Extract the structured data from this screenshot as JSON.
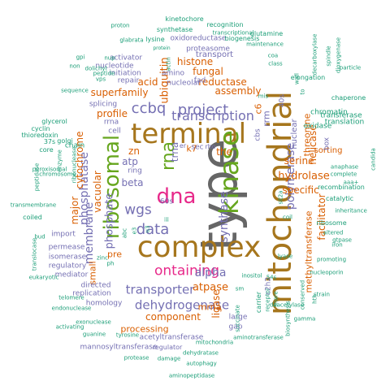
{
  "palette": {
    "green": "#1b9e77",
    "orange": "#d95f02",
    "purple": "#7570b3",
    "pink": "#e7298a",
    "lime": "#66a61e",
    "gold": "#a6761d",
    "gray": "#666666"
  },
  "words": [
    {
      "t": "type",
      "c": "gray"
    },
    {
      "t": "mitochondrial",
      "c": "gold"
    },
    {
      "t": "complex",
      "c": "gold"
    },
    {
      "t": "terminal",
      "c": "gold"
    },
    {
      "t": "kinase",
      "c": "lime"
    },
    {
      "t": "dna",
      "c": "pink"
    },
    {
      "t": "ribosomal",
      "c": "lime"
    },
    {
      "t": "rna",
      "c": "lime"
    },
    {
      "t": "transcription",
      "c": "purple"
    },
    {
      "t": "project",
      "c": "purple"
    },
    {
      "t": "ccbq",
      "c": "purple"
    },
    {
      "t": "data",
      "c": "purple"
    },
    {
      "t": "wgs",
      "c": "purple"
    },
    {
      "t": "synthase",
      "c": "purple"
    },
    {
      "t": "polymerase",
      "c": "purple"
    },
    {
      "t": "ontaining",
      "c": "pink"
    },
    {
      "t": "alpha",
      "c": "purple"
    },
    {
      "t": "transporter",
      "c": "purple"
    },
    {
      "t": "dehydrogenase",
      "c": "purple"
    },
    {
      "t": "membrane",
      "c": "purple"
    },
    {
      "t": "phosphate",
      "c": "purple"
    },
    {
      "t": "phosphatase",
      "c": "purple"
    },
    {
      "t": "atp",
      "c": "purple"
    },
    {
      "t": "beta",
      "c": "purple"
    },
    {
      "t": "ubiquitin",
      "c": "orange"
    },
    {
      "t": "histone",
      "c": "orange"
    },
    {
      "t": "fungal",
      "c": "orange"
    },
    {
      "t": "reductase",
      "c": "orange"
    },
    {
      "t": "assembly",
      "c": "orange"
    },
    {
      "t": "acid",
      "c": "orange"
    },
    {
      "t": "trna",
      "c": "purple"
    },
    {
      "t": "superfamily",
      "c": "orange"
    },
    {
      "t": "profile",
      "c": "orange"
    },
    {
      "t": "hydrolase",
      "c": "orange"
    },
    {
      "t": "serine",
      "c": "orange"
    },
    {
      "t": "specific",
      "c": "orange"
    },
    {
      "t": "methyltransferase",
      "c": "orange"
    },
    {
      "t": "facilitator",
      "c": "orange"
    },
    {
      "t": "atpase",
      "c": "orange"
    },
    {
      "t": "component",
      "c": "orange"
    },
    {
      "t": "processing",
      "c": "orange"
    },
    {
      "t": "ligase",
      "c": "orange"
    },
    {
      "t": "mrna",
      "c": "orange"
    },
    {
      "t": "the",
      "c": "orange"
    },
    {
      "t": "vacuolar",
      "c": "orange"
    },
    {
      "t": "cytochrome",
      "c": "orange"
    },
    {
      "t": "major",
      "c": "orange"
    },
    {
      "t": "small",
      "c": "orange"
    },
    {
      "t": "zn",
      "c": "orange"
    },
    {
      "t": "k7",
      "c": "orange"
    },
    {
      "t": "c6",
      "c": "orange"
    },
    {
      "t": "helicase",
      "c": "orange"
    },
    {
      "t": "threonine",
      "c": "orange"
    },
    {
      "t": "sorting",
      "c": "orange"
    },
    {
      "t": "nuclear",
      "c": "purple"
    },
    {
      "t": "pre",
      "c": "orange"
    },
    {
      "t": "rrm",
      "c": "purple"
    },
    {
      "t": "sec",
      "c": "purple"
    },
    {
      "t": "transport",
      "c": "purple"
    },
    {
      "t": "proteasome",
      "c": "purple"
    },
    {
      "t": "oxidoreductase",
      "c": "purple"
    },
    {
      "t": "repair",
      "c": "purple"
    },
    {
      "t": "initiation",
      "c": "purple"
    },
    {
      "t": "splicing",
      "c": "purple"
    },
    {
      "t": "rrna",
      "c": "purple"
    },
    {
      "t": "amino",
      "c": "purple"
    },
    {
      "t": "nucleolar",
      "c": "purple"
    },
    {
      "t": "fad",
      "c": "purple"
    },
    {
      "t": "cell",
      "c": "purple"
    },
    {
      "t": "large",
      "c": "purple"
    },
    {
      "t": "replication",
      "c": "purple"
    },
    {
      "t": "homology",
      "c": "purple"
    },
    {
      "t": "directed",
      "c": "purple"
    },
    {
      "t": "mediator",
      "c": "purple"
    },
    {
      "t": "regulatory",
      "c": "purple"
    },
    {
      "t": "isomerase",
      "c": "purple"
    },
    {
      "t": "permease",
      "c": "purple"
    },
    {
      "t": "import",
      "c": "purple"
    },
    {
      "t": "acetyltransferase",
      "c": "purple"
    },
    {
      "t": "mannosyltransferase",
      "c": "purple"
    },
    {
      "t": "regulator",
      "c": "purple"
    },
    {
      "t": "gap",
      "c": "purple"
    },
    {
      "t": "c2h2",
      "c": "purple"
    },
    {
      "t": "box",
      "c": "purple"
    },
    {
      "t": "ring",
      "c": "purple"
    },
    {
      "t": "60s",
      "c": "purple"
    },
    {
      "t": "40s",
      "c": "purple"
    },
    {
      "t": "er",
      "c": "purple"
    },
    {
      "t": "rho",
      "c": "purple"
    },
    {
      "t": "activator",
      "c": "purple"
    },
    {
      "t": "nucleotide",
      "c": "purple"
    },
    {
      "t": "cbs",
      "c": "purple"
    },
    {
      "t": "chain",
      "c": "green"
    },
    {
      "t": "golgi",
      "c": "green"
    },
    {
      "t": "translation",
      "c": "green"
    },
    {
      "t": "transferase",
      "c": "green"
    },
    {
      "t": "oxidase",
      "c": "green"
    },
    {
      "t": "chromatin",
      "c": "green"
    },
    {
      "t": "chaperone",
      "c": "green"
    },
    {
      "t": "elongation",
      "c": "green"
    },
    {
      "t": "biogenesis",
      "c": "green"
    },
    {
      "t": "kinetochore",
      "c": "green"
    },
    {
      "t": "recognition",
      "c": "green"
    },
    {
      "t": "glutamine",
      "c": "green"
    },
    {
      "t": "proton",
      "c": "green"
    },
    {
      "t": "synthetase",
      "c": "green"
    },
    {
      "t": "lysine",
      "c": "green"
    },
    {
      "t": "glabrata",
      "c": "green"
    },
    {
      "t": "nup",
      "c": "green"
    },
    {
      "t": "peptide",
      "c": "green"
    },
    {
      "t": "dolichyl",
      "c": "green"
    },
    {
      "t": "vps",
      "c": "green"
    },
    {
      "t": "sequence",
      "c": "green"
    },
    {
      "t": "non",
      "c": "green"
    },
    {
      "t": "transcriptional",
      "c": "green"
    },
    {
      "t": "maintenance",
      "c": "green"
    },
    {
      "t": "coa",
      "c": "green"
    },
    {
      "t": "class",
      "c": "green"
    },
    {
      "t": "particle",
      "c": "green"
    },
    {
      "t": "decarboxylase",
      "c": "green"
    },
    {
      "t": "spindle",
      "c": "green"
    },
    {
      "t": "dioxygenase",
      "c": "green"
    },
    {
      "t": "biosynthesis",
      "c": "green"
    },
    {
      "t": "cyclin",
      "c": "green"
    },
    {
      "t": "thioredoxin",
      "c": "green"
    },
    {
      "t": "glycerol",
      "c": "green"
    },
    {
      "t": "37s",
      "c": "green"
    },
    {
      "t": "core",
      "c": "green"
    },
    {
      "t": "enzyme",
      "c": "green"
    },
    {
      "t": "peroxisomal",
      "c": "green"
    },
    {
      "t": "chromosome",
      "c": "green"
    },
    {
      "t": "peptidase",
      "c": "green"
    },
    {
      "t": "ribonuclease",
      "c": "green"
    },
    {
      "t": "transmembrane",
      "c": "green"
    },
    {
      "t": "coiled",
      "c": "green"
    },
    {
      "t": "bud",
      "c": "green"
    },
    {
      "t": "translocase",
      "c": "green"
    },
    {
      "t": "eukaryotic",
      "c": "green"
    },
    {
      "t": "telomere",
      "c": "green"
    },
    {
      "t": "endonuclease",
      "c": "green"
    },
    {
      "t": "activating",
      "c": "green"
    },
    {
      "t": "exonuclease",
      "c": "green"
    },
    {
      "t": "guanine",
      "c": "green"
    },
    {
      "t": "tyrosine",
      "c": "green"
    },
    {
      "t": "protease",
      "c": "green"
    },
    {
      "t": "damage",
      "c": "green"
    },
    {
      "t": "dehydratase",
      "c": "green"
    },
    {
      "t": "mitochondria",
      "c": "green"
    },
    {
      "t": "autophagy",
      "c": "green"
    },
    {
      "t": "aminopeptidase",
      "c": "green"
    },
    {
      "t": "aminotransferase",
      "c": "green"
    },
    {
      "t": "succinate",
      "c": "green"
    },
    {
      "t": "carrier",
      "c": "green"
    },
    {
      "t": "receptor",
      "c": "green"
    },
    {
      "t": "snare",
      "c": "green"
    },
    {
      "t": "gamma",
      "c": "green"
    },
    {
      "t": "deacetylase",
      "c": "green"
    },
    {
      "t": "hth",
      "c": "green"
    },
    {
      "t": "conserved",
      "c": "green"
    },
    {
      "t": "strain",
      "c": "green"
    },
    {
      "t": "nucleoporin",
      "c": "green"
    },
    {
      "t": "promoting",
      "c": "green"
    },
    {
      "t": "iron",
      "c": "green"
    },
    {
      "t": "gtpase",
      "c": "green"
    },
    {
      "t": "altered",
      "c": "green"
    },
    {
      "t": "ribosome",
      "c": "green"
    },
    {
      "t": "catalytic",
      "c": "green"
    },
    {
      "t": "recombination",
      "c": "green"
    },
    {
      "t": "anaphase",
      "c": "green"
    },
    {
      "t": "inheritance",
      "c": "green"
    },
    {
      "t": "candida",
      "c": "green"
    },
    {
      "t": "aaa+",
      "c": "green"
    },
    {
      "t": "complete",
      "c": "green"
    },
    {
      "t": "coil",
      "c": "green"
    },
    {
      "t": "sit2a",
      "c": "green"
    },
    {
      "t": "lyase",
      "c": "green"
    },
    {
      "t": "inositol",
      "c": "green"
    },
    {
      "t": "54s",
      "c": "green"
    },
    {
      "t": "sm",
      "c": "green"
    },
    {
      "t": "zinc",
      "c": "green"
    },
    {
      "t": "ph",
      "c": "green"
    },
    {
      "t": "abc",
      "c": "green"
    },
    {
      "t": "e3",
      "c": "green"
    },
    {
      "t": "u3",
      "c": "green"
    },
    {
      "t": "iii",
      "c": "green"
    },
    {
      "t": "mis",
      "c": "green"
    },
    {
      "t": "to",
      "c": "green"
    },
    {
      "t": "gpi",
      "c": "green"
    },
    {
      "t": "protein",
      "c": "green"
    },
    {
      "t": "actin",
      "c": "green"
    },
    {
      "t": "wall",
      "c": "green"
    },
    {
      "t": "fold",
      "c": "green"
    },
    {
      "t": "inner",
      "c": "green"
    },
    {
      "t": "pad",
      "c": "green"
    }
  ]
}
